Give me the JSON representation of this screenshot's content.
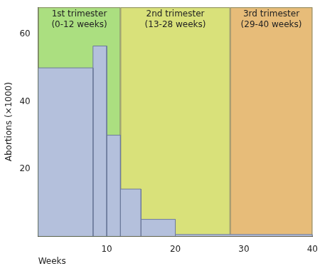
{
  "chart_data": {
    "type": "histogram",
    "x_label": "Weeks",
    "y_label": "Abortions (×1000)",
    "bins": [
      0,
      8,
      10,
      12,
      15,
      20,
      40
    ],
    "values": [
      50,
      56.5,
      30,
      14,
      5,
      0.5
    ],
    "color": "#b4c0dc",
    "xlim": [
      0,
      40
    ],
    "ylim": [
      0,
      68
    ],
    "xticks": [
      10,
      20,
      30,
      40
    ],
    "yticks": [
      20,
      40,
      60
    ],
    "grid": false,
    "annotations": [
      {
        "text": [
          "1st trimester",
          "(0-12 weeks)"
        ],
        "x_start": 0,
        "x_end": 12,
        "color": "#abdf80"
      },
      {
        "text": [
          "2nd trimester",
          "(13-28 weeks)"
        ],
        "x_start": 12,
        "x_end": 28,
        "color": "#d9e17a"
      },
      {
        "text": [
          "3rd trimester",
          "(29-40 weeks)"
        ],
        "x_start": 28,
        "x_end": 40,
        "color": "#e7bc79"
      }
    ]
  }
}
